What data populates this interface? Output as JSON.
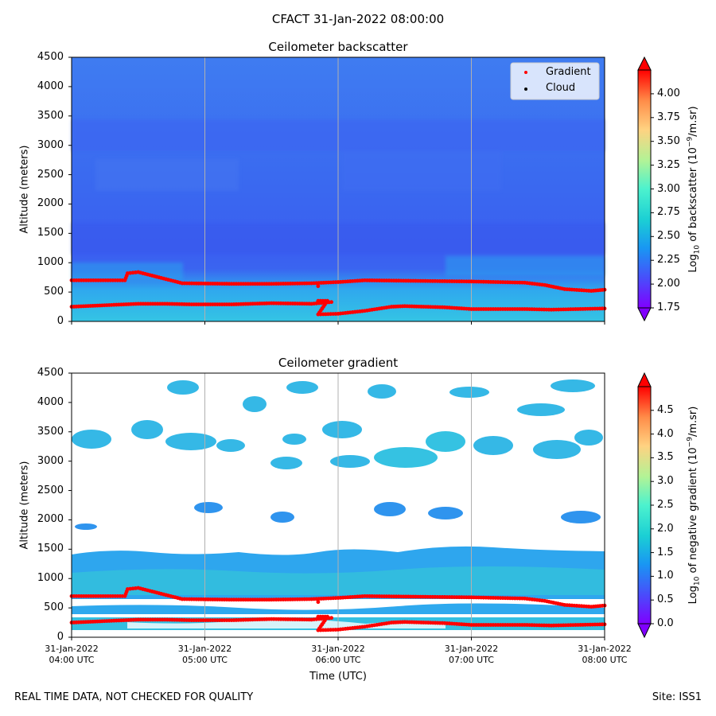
{
  "figure": {
    "title": "CFACT 31-Jan-2022 08:00:00",
    "footer_left": "REAL TIME DATA, NOT CHECKED FOR QUALITY",
    "footer_right": "Site: ISS1"
  },
  "chart_data": [
    {
      "type": "heatmap",
      "title": "Ceilometer backscatter",
      "xlabel": "",
      "ylabel": "Altitude (meters)",
      "ylim": [
        0,
        4500
      ],
      "y_ticks": [
        0,
        500,
        1000,
        1500,
        2000,
        2500,
        3000,
        3500,
        4000,
        4500
      ],
      "x_range_hours": [
        4,
        8
      ],
      "x_gridlines_hours": [
        5,
        6,
        7
      ],
      "colorbar": {
        "label": "Log10 of backscatter (10^-9/m.sr)",
        "label_parts": {
          "pre": "Log",
          "sub": "10",
          "mid": " of backscatter (10",
          "sup": "−9",
          "post": "/m.sr)"
        },
        "range": [
          1.75,
          4.25
        ],
        "ticks": [
          "1.75",
          "2.00",
          "2.25",
          "2.50",
          "2.75",
          "3.00",
          "3.25",
          "3.50",
          "3.75",
          "4.00"
        ],
        "extend": "both"
      },
      "legend": {
        "location": "upper right",
        "entries": [
          {
            "label": "Gradient",
            "color": "#ff0000"
          },
          {
            "label": "Cloud",
            "color": "#000000"
          }
        ]
      },
      "field_description": "near-surface layer ~2.5-2.7 below 500 m, ~2.2-2.3 above",
      "series": [
        {
          "name": "Gradient upper",
          "points": [
            [
              4.0,
              700
            ],
            [
              4.4,
              700
            ],
            [
              4.42,
              820
            ],
            [
              4.5,
              840
            ],
            [
              4.83,
              650
            ],
            [
              5.2,
              640
            ],
            [
              5.5,
              640
            ],
            [
              5.8,
              650
            ],
            [
              6.0,
              670
            ],
            [
              6.2,
              700
            ],
            [
              6.6,
              690
            ],
            [
              7.0,
              680
            ],
            [
              7.4,
              660
            ],
            [
              7.55,
              620
            ],
            [
              7.7,
              550
            ],
            [
              7.9,
              520
            ],
            [
              8.0,
              540
            ]
          ]
        },
        {
          "name": "Gradient lower",
          "points": [
            [
              4.0,
              250
            ],
            [
              4.3,
              280
            ],
            [
              4.5,
              300
            ],
            [
              4.7,
              300
            ],
            [
              4.9,
              290
            ],
            [
              5.2,
              290
            ],
            [
              5.5,
              310
            ],
            [
              5.8,
              300
            ],
            [
              5.95,
              330
            ],
            [
              5.85,
              600
            ]
          ]
        },
        {
          "name": "Gradient 3",
          "points": [
            [
              5.85,
              350
            ],
            [
              5.92,
              350
            ],
            [
              5.85,
              120
            ],
            [
              6.0,
              130
            ],
            [
              6.2,
              180
            ],
            [
              6.4,
              250
            ],
            [
              6.5,
              260
            ],
            [
              6.8,
              240
            ],
            [
              7.0,
              210
            ],
            [
              7.4,
              210
            ],
            [
              7.6,
              200
            ],
            [
              8.0,
              220
            ]
          ]
        }
      ]
    },
    {
      "type": "heatmap",
      "title": "Ceilometer gradient",
      "xlabel": "Time (UTC)",
      "ylabel": "Altitude (meters)",
      "ylim": [
        0,
        4500
      ],
      "y_ticks": [
        0,
        500,
        1000,
        1500,
        2000,
        2500,
        3000,
        3500,
        4000,
        4500
      ],
      "x_ticks": [
        {
          "hour": 4,
          "date": "31-Jan-2022",
          "time": "04:00 UTC"
        },
        {
          "hour": 5,
          "date": "31-Jan-2022",
          "time": "05:00 UTC"
        },
        {
          "hour": 6,
          "date": "31-Jan-2022",
          "time": "06:00 UTC"
        },
        {
          "hour": 7,
          "date": "31-Jan-2022",
          "time": "07:00 UTC"
        },
        {
          "hour": 8,
          "date": "31-Jan-2022",
          "time": "08:00 UTC"
        }
      ],
      "x_range_hours": [
        4,
        8
      ],
      "x_gridlines_hours": [
        5,
        6,
        7
      ],
      "colorbar": {
        "label": "Log10 of negative gradient (10^-9/m.sr)",
        "label_parts": {
          "pre": "Log",
          "sub": "10",
          "mid": " of negative gradient (10",
          "sup": "−9",
          "post": "/m.sr)"
        },
        "range": [
          0,
          5
        ],
        "ticks": [
          "0.0",
          "0.5",
          "1.0",
          "1.5",
          "2.0",
          "2.5",
          "3.0",
          "3.5",
          "4.0",
          "4.5"
        ],
        "extend": "both"
      },
      "field_description": "sparse cloud-like patches above 1600 m, continuous layer 800-1500 m",
      "series": [
        {
          "name": "Gradient upper",
          "points": [
            [
              4.0,
              700
            ],
            [
              4.4,
              700
            ],
            [
              4.42,
              820
            ],
            [
              4.5,
              840
            ],
            [
              4.83,
              650
            ],
            [
              5.2,
              640
            ],
            [
              5.5,
              640
            ],
            [
              5.8,
              650
            ],
            [
              6.0,
              670
            ],
            [
              6.2,
              700
            ],
            [
              6.6,
              690
            ],
            [
              7.0,
              680
            ],
            [
              7.4,
              660
            ],
            [
              7.55,
              620
            ],
            [
              7.7,
              550
            ],
            [
              7.9,
              520
            ],
            [
              8.0,
              540
            ]
          ]
        },
        {
          "name": "Gradient lower",
          "points": [
            [
              4.0,
              250
            ],
            [
              4.3,
              280
            ],
            [
              4.5,
              300
            ],
            [
              4.7,
              300
            ],
            [
              4.9,
              290
            ],
            [
              5.2,
              290
            ],
            [
              5.5,
              310
            ],
            [
              5.8,
              300
            ],
            [
              5.95,
              330
            ],
            [
              5.85,
              600
            ]
          ]
        },
        {
          "name": "Gradient 3",
          "points": [
            [
              5.85,
              350
            ],
            [
              5.92,
              350
            ],
            [
              5.85,
              120
            ],
            [
              6.0,
              130
            ],
            [
              6.2,
              180
            ],
            [
              6.4,
              250
            ],
            [
              6.5,
              260
            ],
            [
              6.8,
              240
            ],
            [
              7.0,
              210
            ],
            [
              7.4,
              210
            ],
            [
              7.6,
              200
            ],
            [
              8.0,
              220
            ]
          ]
        }
      ]
    }
  ]
}
